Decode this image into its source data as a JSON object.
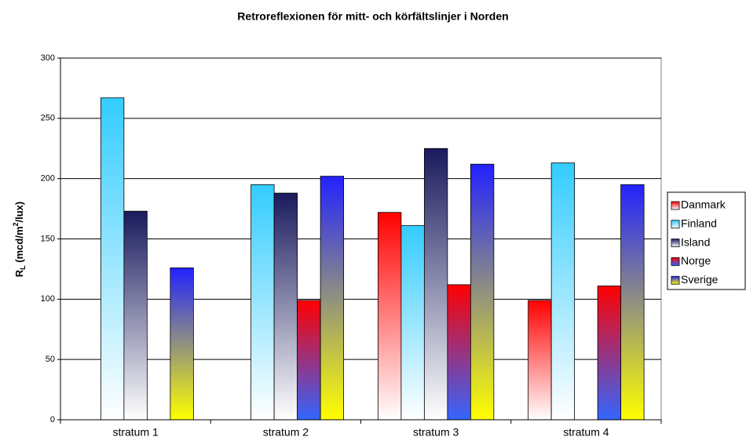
{
  "chart_data": {
    "type": "bar",
    "title": "Retroreflexionen för mitt- och körfältslinjer i Norden",
    "y_label": [
      "R",
      "L",
      " (mcd/m",
      "2",
      "/lux)"
    ],
    "categories": [
      "stratum 1",
      "stratum 2",
      "stratum 3",
      "stratum 4"
    ],
    "series": [
      {
        "name": "Danmark",
        "color": [
          "#ff0000",
          "#ffffff"
        ],
        "values": [
          null,
          null,
          172,
          99
        ]
      },
      {
        "name": "Finland",
        "color": [
          "#33ccff",
          "#ffffff"
        ],
        "values": [
          267,
          195,
          161,
          213
        ]
      },
      {
        "name": "Island",
        "color": [
          "#1a1a5e",
          "#ffffff"
        ],
        "values": [
          173,
          188,
          225,
          null
        ]
      },
      {
        "name": "Norge",
        "color": [
          "#ff0000",
          "#3366ff"
        ],
        "values": [
          null,
          99,
          112,
          111
        ]
      },
      {
        "name": "Sverige",
        "color": [
          "#2222ff",
          "#ffff00"
        ],
        "values": [
          126,
          202,
          212,
          195
        ]
      }
    ],
    "ylim": [
      0,
      300
    ],
    "yticks": [
      0,
      50,
      100,
      150,
      200,
      250,
      300
    ],
    "grid": true,
    "legend": "right"
  }
}
